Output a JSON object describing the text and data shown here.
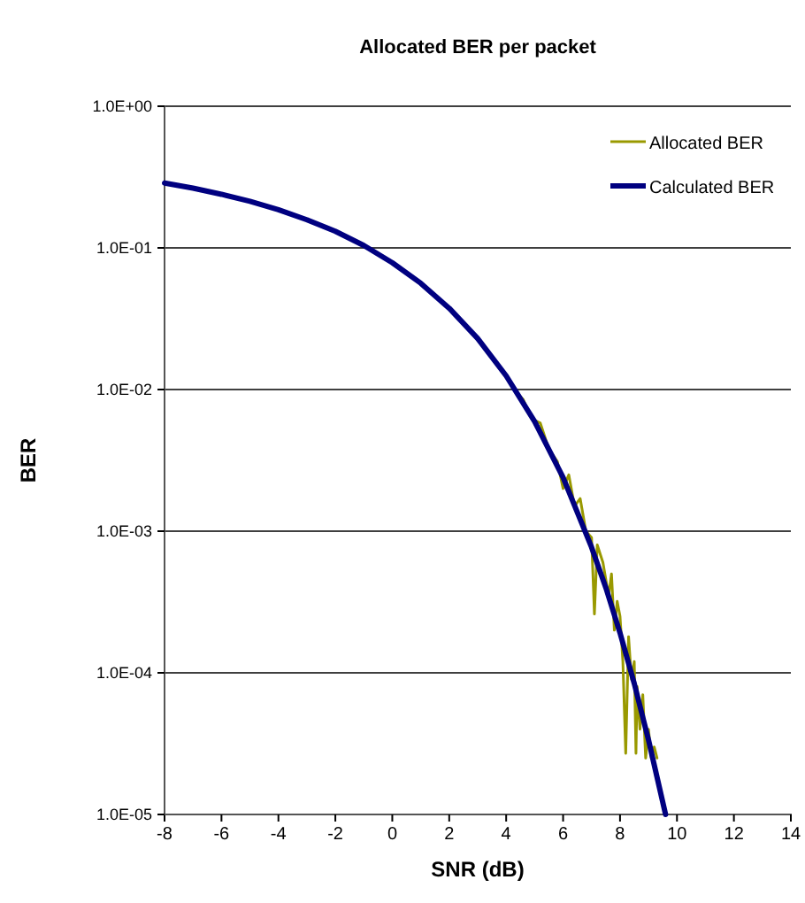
{
  "chart_data": {
    "type": "line",
    "title": "Allocated BER per packet",
    "xlabel": "SNR (dB)",
    "ylabel": "BER",
    "log": "y",
    "grid": "y",
    "legend": "top right",
    "xlim": [
      -8,
      14
    ],
    "xticks": [
      -8,
      -6,
      -4,
      -2,
      0,
      2,
      4,
      6,
      8,
      10,
      12,
      14
    ],
    "ylim": [
      1e-05,
      1
    ],
    "yticks": [
      {
        "value": 1e-05,
        "label": "1.0E-05"
      },
      {
        "value": 0.0001,
        "label": "1.0E-04"
      },
      {
        "value": 0.001,
        "label": "1.0E-03"
      },
      {
        "value": 0.01,
        "label": "1.0E-02"
      },
      {
        "value": 0.1,
        "label": "1.0E-01"
      },
      {
        "value": 1,
        "label": "1.0E+00"
      }
    ],
    "series": [
      {
        "name": "Allocated BER",
        "color": "#999900",
        "x": [
          4.3,
          4.6,
          4.9,
          5.2,
          5.5,
          5.8,
          6.0,
          6.2,
          6.4,
          6.6,
          6.8,
          7.0,
          7.1,
          7.2,
          7.4,
          7.6,
          7.7,
          7.8,
          7.9,
          8.0,
          8.1,
          8.2,
          8.3,
          8.4,
          8.5,
          8.56,
          8.6,
          8.7,
          8.8,
          8.9,
          9.0,
          9.1,
          9.2,
          9.3
        ],
        "values": [
          0.0098,
          0.0085,
          0.0062,
          0.0058,
          0.0038,
          0.0031,
          0.002,
          0.0025,
          0.0015,
          0.0017,
          0.001,
          0.0009,
          0.00026,
          0.0008,
          0.0006,
          0.00035,
          0.0005,
          0.0002,
          0.00032,
          0.00025,
          0.00012,
          2.7e-05,
          0.00018,
          9e-05,
          0.00012,
          2.7e-05,
          8e-05,
          4e-05,
          7e-05,
          2.5e-05,
          4e-05,
          2.5e-05,
          3e-05,
          2.5e-05
        ]
      },
      {
        "name": "Calculated BER",
        "color": "#000080",
        "x": [
          -8,
          -7,
          -6,
          -5,
          -4,
          -3,
          -2,
          -1,
          0,
          1,
          2,
          3,
          4,
          5,
          6,
          7,
          7.5,
          8,
          8.5,
          9,
          9.6
        ],
        "values": [
          0.287,
          0.264,
          0.239,
          0.213,
          0.186,
          0.158,
          0.131,
          0.104,
          0.0786,
          0.0563,
          0.0375,
          0.0229,
          0.0125,
          0.00595,
          0.00239,
          0.00077,
          0.0004,
          0.000191,
          8.4e-05,
          3.36e-05,
          1e-05
        ]
      }
    ]
  }
}
